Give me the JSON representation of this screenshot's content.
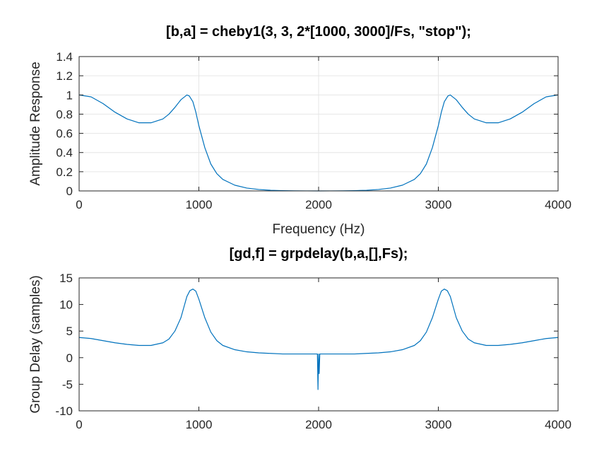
{
  "chart_data": [
    {
      "type": "line",
      "title": "[b,a] = cheby1(3, 3, 2*[1000, 3000]/Fs, \"stop\");",
      "xlabel": "Frequency (Hz)",
      "ylabel": "Amplitude Response",
      "xlim": [
        0,
        4000
      ],
      "ylim": [
        0,
        1.4
      ],
      "xticks": [
        0,
        1000,
        2000,
        3000,
        4000
      ],
      "xtick_labels": [
        "0",
        "1000",
        "2000",
        "3000",
        "4000"
      ],
      "yticks": [
        0,
        0.2,
        0.4,
        0.6,
        0.8,
        1.0,
        1.2,
        1.4
      ],
      "ytick_labels": [
        "0",
        "0.2",
        "0.4",
        "0.6",
        "0.8",
        "1",
        "1.2",
        "1.4"
      ],
      "grid": true,
      "color": "#0072bd",
      "x": [
        0,
        100,
        200,
        300,
        400,
        500,
        600,
        700,
        750,
        800,
        850,
        900,
        920,
        950,
        975,
        1000,
        1050,
        1100,
        1150,
        1200,
        1300,
        1400,
        1500,
        1600,
        1700,
        1800,
        1900,
        2000,
        2100,
        2200,
        2300,
        2400,
        2500,
        2600,
        2700,
        2800,
        2850,
        2900,
        2950,
        3000,
        3025,
        3050,
        3080,
        3100,
        3150,
        3200,
        3250,
        3300,
        3400,
        3500,
        3600,
        3700,
        3800,
        3900,
        4000
      ],
      "y": [
        1.0,
        0.98,
        0.91,
        0.82,
        0.75,
        0.71,
        0.71,
        0.75,
        0.8,
        0.87,
        0.95,
        1.0,
        0.99,
        0.93,
        0.82,
        0.68,
        0.45,
        0.28,
        0.18,
        0.12,
        0.06,
        0.03,
        0.015,
        0.007,
        0.003,
        0.001,
        0.0003,
        0.0,
        0.0003,
        0.001,
        0.003,
        0.007,
        0.015,
        0.03,
        0.06,
        0.12,
        0.18,
        0.28,
        0.45,
        0.68,
        0.82,
        0.93,
        0.99,
        1.0,
        0.95,
        0.87,
        0.8,
        0.75,
        0.71,
        0.71,
        0.75,
        0.82,
        0.91,
        0.98,
        1.0
      ]
    },
    {
      "type": "line",
      "title": "[gd,f] = grpdelay(b,a,[],Fs);",
      "xlabel": "",
      "ylabel": "Group Delay (samples)",
      "xlim": [
        0,
        4000
      ],
      "ylim": [
        -10,
        15
      ],
      "xticks": [
        0,
        1000,
        2000,
        3000,
        4000
      ],
      "xtick_labels": [
        "0",
        "1000",
        "2000",
        "3000",
        "4000"
      ],
      "yticks": [
        -10,
        -5,
        0,
        5,
        10,
        15
      ],
      "ytick_labels": [
        "-10",
        "-5",
        "0",
        "5",
        "10",
        "15"
      ],
      "grid": false,
      "color": "#0072bd",
      "x": [
        0,
        100,
        200,
        300,
        400,
        500,
        600,
        700,
        750,
        800,
        850,
        875,
        900,
        925,
        950,
        975,
        1000,
        1050,
        1100,
        1150,
        1200,
        1300,
        1400,
        1500,
        1600,
        1700,
        1800,
        1900,
        1990,
        1995,
        2000,
        2005,
        2010,
        2100,
        2200,
        2300,
        2400,
        2500,
        2600,
        2700,
        2800,
        2850,
        2900,
        2950,
        3000,
        3025,
        3050,
        3075,
        3100,
        3125,
        3150,
        3200,
        3250,
        3300,
        3400,
        3500,
        3600,
        3700,
        3800,
        3900,
        4000
      ],
      "y": [
        3.8,
        3.6,
        3.2,
        2.8,
        2.5,
        2.3,
        2.3,
        2.8,
        3.5,
        5.0,
        7.5,
        9.5,
        11.5,
        12.6,
        12.9,
        12.5,
        11.0,
        7.5,
        4.8,
        3.2,
        2.3,
        1.5,
        1.1,
        0.9,
        0.8,
        0.7,
        0.7,
        0.7,
        0.7,
        -6.0,
        0.7,
        -3.0,
        0.7,
        0.7,
        0.7,
        0.7,
        0.8,
        0.9,
        1.1,
        1.5,
        2.3,
        3.2,
        4.8,
        7.5,
        11.0,
        12.5,
        12.9,
        12.6,
        11.5,
        9.5,
        7.5,
        5.0,
        3.5,
        2.8,
        2.3,
        2.3,
        2.5,
        2.8,
        3.2,
        3.6,
        3.8
      ]
    }
  ]
}
